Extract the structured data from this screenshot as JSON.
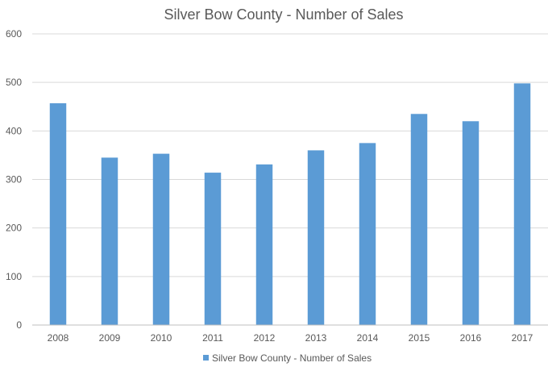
{
  "chart_data": {
    "type": "bar",
    "title": "Silver Bow County - Number of Sales",
    "xlabel": "",
    "ylabel": "",
    "categories": [
      "2008",
      "2009",
      "2010",
      "2011",
      "2012",
      "2013",
      "2014",
      "2015",
      "2016",
      "2017"
    ],
    "series": [
      {
        "name": "Silver Bow County - Number of Sales",
        "values": [
          457,
          345,
          353,
          314,
          331,
          360,
          375,
          435,
          420,
          498
        ],
        "color": "#5b9bd5"
      }
    ],
    "ylim": [
      0,
      600
    ],
    "yticks": [
      0,
      100,
      200,
      300,
      400,
      500,
      600
    ],
    "grid": true,
    "legend_position": "bottom"
  }
}
